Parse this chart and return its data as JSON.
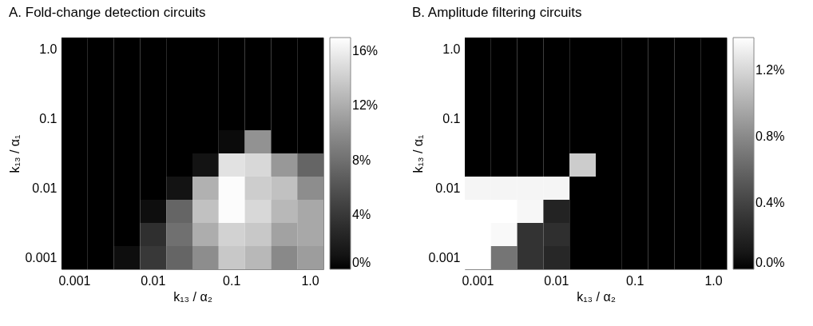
{
  "chart_data": [
    {
      "type": "heatmap",
      "title": "A. Fold-change detection circuits",
      "xlabel": "k₁₃ / α₂",
      "ylabel": "k₁₃ / α₁",
      "clabel": null,
      "categories": [
        "0.001",
        null,
        null,
        "0.01",
        null,
        null,
        "0.1",
        null,
        null,
        "1.0"
      ],
      "y_categories": [
        "1.0",
        null,
        null,
        "0.1",
        null,
        null,
        "0.01",
        null,
        null,
        "0.001"
      ],
      "cells": [
        [
          0,
          0,
          0,
          0,
          0,
          0,
          0,
          0,
          0,
          0
        ],
        [
          0,
          0,
          0,
          0,
          0,
          0,
          0,
          0,
          0,
          0
        ],
        [
          0,
          0,
          0,
          0,
          0,
          0,
          0,
          0,
          0,
          0
        ],
        [
          0,
          0,
          0,
          0,
          0,
          0,
          0,
          0,
          0,
          0
        ],
        [
          0,
          0,
          0,
          0,
          0,
          0,
          0.5,
          10.3,
          0,
          0
        ],
        [
          0,
          0,
          0,
          0,
          0,
          1.0,
          15.3,
          14.7,
          10.7,
          7.3
        ],
        [
          0,
          0,
          0,
          0,
          1.0,
          12.3,
          16.8,
          14.0,
          13.3,
          10.0
        ],
        [
          0,
          0,
          0,
          0.7,
          7.3,
          13.3,
          16.8,
          14.7,
          12.7,
          11.7
        ],
        [
          0,
          0,
          0,
          3.3,
          8.0,
          12.0,
          14.3,
          13.7,
          11.3,
          11.7
        ],
        [
          0,
          0,
          0.7,
          4.0,
          7.3,
          10.0,
          13.7,
          12.7,
          9.7,
          11.0
        ]
      ],
      "clim": [
        0,
        17
      ],
      "cticks": [
        {
          "value": 0,
          "label": "0%"
        },
        {
          "value": 4,
          "label": "4%"
        },
        {
          "value": 8,
          "label": "8%"
        },
        {
          "value": 12,
          "label": "12%"
        },
        {
          "value": 16,
          "label": "16%"
        }
      ]
    },
    {
      "type": "heatmap",
      "title": "B. Amplitude filtering circuits",
      "xlabel": "k₁₃ / α₂",
      "ylabel": "k₁₃ / α₁",
      "categories": [
        "0.001",
        null,
        null,
        "0.01",
        null,
        null,
        "0.1",
        null,
        null,
        "1.0"
      ],
      "y_categories": [
        "1.0",
        null,
        null,
        "0.1",
        null,
        null,
        "0.01",
        null,
        null,
        "0.001"
      ],
      "cells": [
        [
          0,
          0,
          0,
          0,
          0,
          0,
          0,
          0,
          0,
          0
        ],
        [
          0,
          0,
          0,
          0,
          0,
          0,
          0,
          0,
          0,
          0
        ],
        [
          0,
          0,
          0,
          0,
          0,
          0,
          0,
          0,
          0,
          0
        ],
        [
          0,
          0,
          0,
          0,
          0,
          0,
          0,
          0,
          0,
          0
        ],
        [
          0,
          0,
          0,
          0,
          0,
          0,
          0,
          0,
          0,
          0
        ],
        [
          0,
          0,
          0,
          0,
          1.15,
          0,
          0,
          0,
          0,
          0
        ],
        [
          1.35,
          1.35,
          1.35,
          1.35,
          0,
          0,
          0,
          0,
          0,
          0
        ],
        [
          1.4,
          1.4,
          1.36,
          0.19,
          0,
          0,
          0,
          0,
          0,
          0
        ],
        [
          1.4,
          1.37,
          0.3,
          0.27,
          0,
          0,
          0,
          0,
          0,
          0
        ],
        [
          1.4,
          0.69,
          0.3,
          0.22,
          0,
          0,
          0,
          0,
          0,
          0
        ]
      ],
      "clim": [
        0,
        1.4
      ],
      "cticks": [
        {
          "value": 0,
          "label": "0.0%"
        },
        {
          "value": 0.4,
          "label": "0.4%"
        },
        {
          "value": 0.8,
          "label": "0.8%"
        },
        {
          "value": 1.2,
          "label": "1.2%"
        }
      ]
    }
  ]
}
